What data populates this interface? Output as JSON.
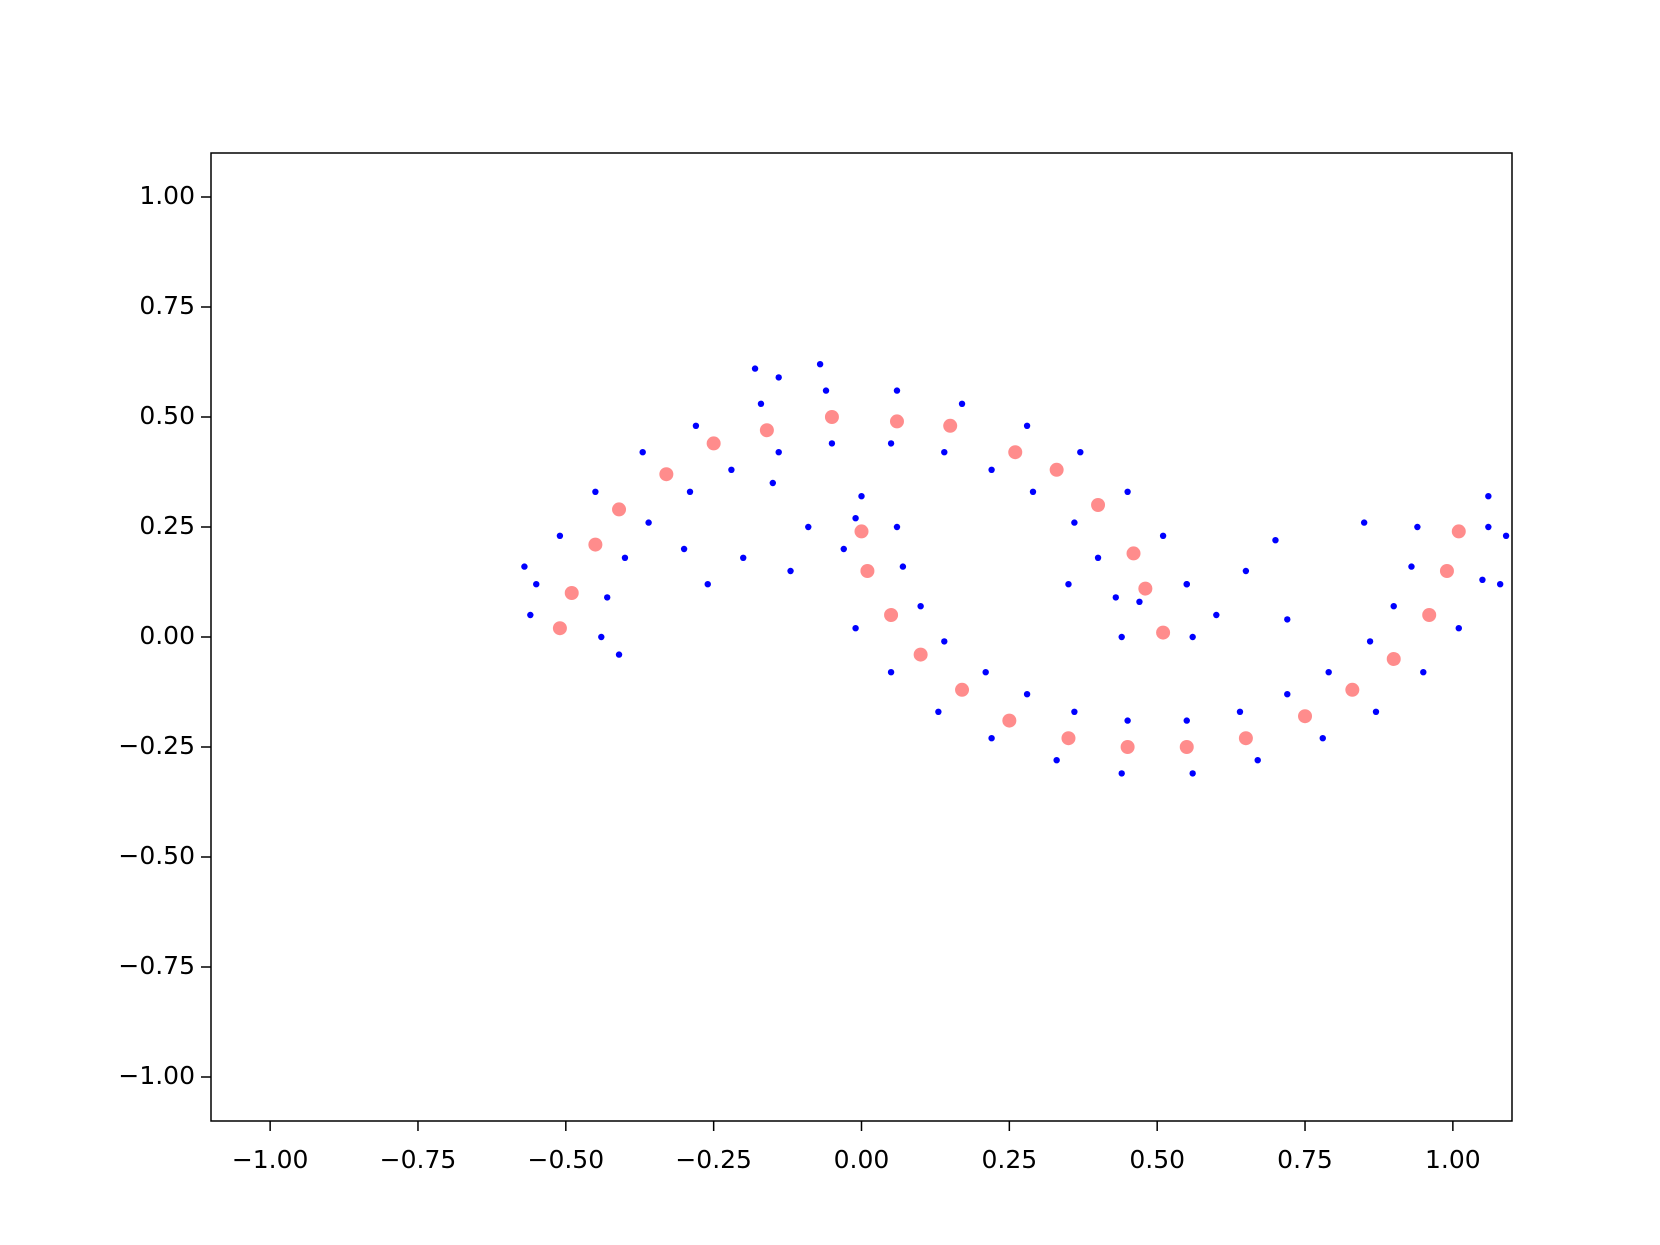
{
  "chart_data": {
    "type": "scatter",
    "xlim": [
      -1.1,
      1.1
    ],
    "ylim": [
      -1.1,
      1.1
    ],
    "xticks": [
      {
        "value": -1,
        "label": "−1.00"
      },
      {
        "value": -0.75,
        "label": "−0.75"
      },
      {
        "value": -0.5,
        "label": "−0.50"
      },
      {
        "value": -0.25,
        "label": "−0.25"
      },
      {
        "value": 0,
        "label": "0.00"
      },
      {
        "value": 0.25,
        "label": "0.25"
      },
      {
        "value": 0.5,
        "label": "0.50"
      },
      {
        "value": 0.75,
        "label": "0.75"
      },
      {
        "value": 1,
        "label": "1.00"
      }
    ],
    "yticks": [
      {
        "value": -1,
        "label": "−1.00"
      },
      {
        "value": -0.75,
        "label": "−0.75"
      },
      {
        "value": -0.5,
        "label": "−0.50"
      },
      {
        "value": -0.25,
        "label": "−0.25"
      },
      {
        "value": 0,
        "label": "0.00"
      },
      {
        "value": 0.25,
        "label": "0.25"
      },
      {
        "value": 0.5,
        "label": "0.50"
      },
      {
        "value": 0.75,
        "label": "0.75"
      },
      {
        "value": 1,
        "label": "1.00"
      }
    ],
    "series": [
      {
        "color": "blue",
        "x": [
          0.56,
          0.55,
          0.51,
          0.45,
          0.37,
          0.28,
          0.17,
          0.06,
          -0.06,
          -0.17,
          -0.28,
          -0.37,
          -0.45,
          -0.51,
          -0.55,
          -0.56,
          0.44,
          0.43,
          0.4,
          0.36,
          0.29,
          0.22,
          0.14,
          0.05,
          -0.05,
          -0.14,
          -0.22,
          -0.29,
          -0.36,
          -0.4,
          -0.43,
          -0.44,
          1.06,
          1.05,
          1.01,
          0.95,
          0.87,
          0.78,
          0.67,
          0.56,
          0.44,
          0.33,
          0.22,
          0.13,
          0.05,
          -0.01,
          -0.03,
          -0.01,
          0.94,
          0.93,
          0.9,
          0.86,
          0.79,
          0.72,
          0.64,
          0.55,
          0.45,
          0.36,
          0.28,
          0.21,
          0.14,
          0.1,
          0.07,
          0.06,
          -0.07,
          -0.14,
          -0.18,
          -0.15,
          -0.09,
          -0.2,
          -0.26,
          -0.3,
          -0.41,
          0.0,
          0.7,
          0.65,
          0.72,
          0.85,
          0.47,
          0.55,
          1.09,
          1.08,
          1.06,
          -0.57,
          -0.12,
          0.35,
          0.6
        ],
        "y": [
          0.0,
          0.12,
          0.23,
          0.33,
          0.42,
          0.48,
          0.53,
          0.56,
          0.56,
          0.53,
          0.48,
          0.42,
          0.33,
          0.23,
          0.12,
          0.05,
          0.0,
          0.09,
          0.18,
          0.26,
          0.33,
          0.38,
          0.42,
          0.44,
          0.44,
          0.42,
          0.38,
          0.33,
          0.26,
          0.18,
          0.09,
          0.0,
          0.25,
          0.13,
          0.02,
          -0.08,
          -0.17,
          -0.23,
          -0.28,
          -0.31,
          -0.31,
          -0.28,
          -0.23,
          -0.17,
          -0.08,
          0.02,
          0.2,
          0.27,
          0.25,
          0.16,
          0.07,
          -0.01,
          -0.08,
          -0.13,
          -0.17,
          -0.19,
          -0.19,
          -0.17,
          -0.13,
          -0.08,
          -0.01,
          0.07,
          0.16,
          0.25,
          0.62,
          0.59,
          0.61,
          0.35,
          0.25,
          0.18,
          0.12,
          0.2,
          -0.04,
          0.32,
          0.22,
          0.15,
          0.04,
          0.26,
          0.08,
          0.12,
          0.23,
          0.12,
          0.32,
          0.16,
          0.15,
          0.12,
          0.05
        ]
      },
      {
        "color": "red",
        "x": [
          0.51,
          0.48,
          0.46,
          0.4,
          0.33,
          0.26,
          0.15,
          0.06,
          -0.05,
          -0.16,
          -0.25,
          -0.33,
          -0.41,
          -0.45,
          -0.49,
          -0.51,
          1.01,
          0.99,
          0.96,
          0.9,
          0.83,
          0.75,
          0.65,
          0.55,
          0.45,
          0.35,
          0.25,
          0.17,
          0.1,
          0.05,
          0.01,
          0.0
        ],
        "y": [
          0.01,
          0.11,
          0.19,
          0.3,
          0.38,
          0.42,
          0.48,
          0.49,
          0.5,
          0.47,
          0.44,
          0.37,
          0.29,
          0.21,
          0.1,
          0.02,
          0.24,
          0.15,
          0.05,
          -0.05,
          -0.12,
          -0.18,
          -0.23,
          -0.25,
          -0.25,
          -0.23,
          -0.19,
          -0.12,
          -0.04,
          0.05,
          0.15,
          0.24
        ]
      }
    ]
  }
}
